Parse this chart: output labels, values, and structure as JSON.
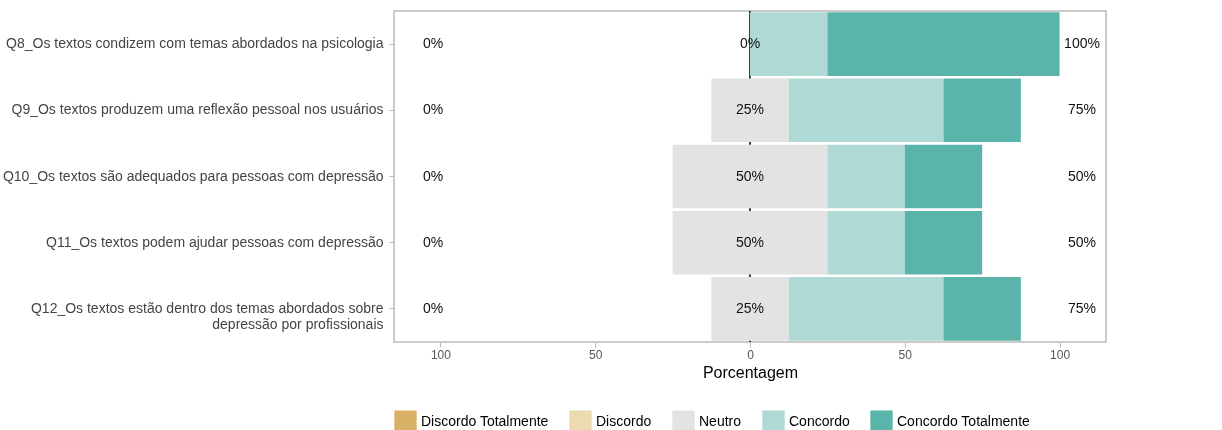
{
  "chart_data": {
    "type": "bar",
    "orientation": "horizontal",
    "categories": [
      "Q8_Os textos condizem com temas abordados na psicologia",
      "Q9_Os textos produzem uma reflexão pessoal nos usuários",
      "Q10_Os textos são adequados para pessoas com depressão",
      "Q11_Os textos podem ajudar pessoas com depressão",
      "Q12_Os textos estão dentro dos temas abordados sobre\ndepressão por profissionais"
    ],
    "series": [
      {
        "name": "Discordo Totalmente",
        "color": "#d9b166",
        "values": [
          0,
          0,
          0,
          0,
          0
        ]
      },
      {
        "name": "Discordo",
        "color": "#ecdbb0",
        "values": [
          0,
          0,
          0,
          0,
          0
        ]
      },
      {
        "name": "Neutro",
        "color": "#e3e3e3",
        "values": [
          0,
          25,
          50,
          50,
          25
        ],
        "base": [
          null,
          -12.5,
          -25,
          -25,
          -12.5
        ],
        "value_labels": [
          "0%",
          "25%",
          "50%",
          "50%",
          "25%"
        ]
      },
      {
        "name": "Concordo",
        "color": "#aed9d5",
        "values": [
          25,
          50,
          25,
          25,
          50
        ],
        "base": [
          0,
          12.5,
          25,
          25,
          12.5
        ]
      },
      {
        "name": "Concordo Totalmente",
        "color": "#5ab4aa",
        "values": [
          75,
          25,
          25,
          25,
          25
        ],
        "base": [
          25,
          62.5,
          50,
          50,
          62.5
        ]
      }
    ],
    "xlabel": "Porcentagem",
    "xlim": [
      -115,
      115
    ],
    "xticks": [
      {
        "value": -100,
        "label": "100"
      },
      {
        "value": -50,
        "label": "50"
      },
      0,
      50,
      100
    ],
    "ref_lines": [
      {
        "axis": "x",
        "value": 0,
        "color": "#000000"
      }
    ],
    "annotations": [
      "0%",
      "0%",
      "0%",
      "0%",
      "0%",
      "100%",
      "75%",
      "50%",
      "50%",
      "75%"
    ],
    "legend": "bottom"
  }
}
